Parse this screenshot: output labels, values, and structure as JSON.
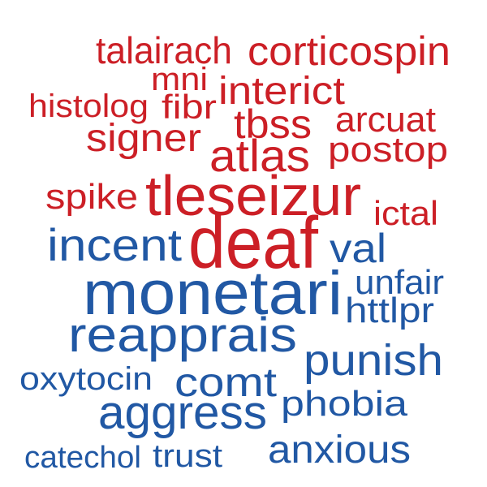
{
  "colors": {
    "red": "#cc1f26",
    "blue": "#2158a4",
    "background": "#ffffff"
  },
  "words": [
    {
      "text": "talairach",
      "color": "red"
    },
    {
      "text": "corticospin",
      "color": "red"
    },
    {
      "text": "mni",
      "color": "red"
    },
    {
      "text": "interict",
      "color": "red"
    },
    {
      "text": "histolog",
      "color": "red"
    },
    {
      "text": "fibr",
      "color": "red"
    },
    {
      "text": "tbss",
      "color": "red"
    },
    {
      "text": "arcuat",
      "color": "red"
    },
    {
      "text": "signer",
      "color": "red"
    },
    {
      "text": "atlas",
      "color": "red"
    },
    {
      "text": "postop",
      "color": "red"
    },
    {
      "text": "spike",
      "color": "red"
    },
    {
      "text": "tleseizur",
      "color": "red"
    },
    {
      "text": "ictal",
      "color": "red"
    },
    {
      "text": "incent",
      "color": "blue"
    },
    {
      "text": "deaf",
      "color": "red"
    },
    {
      "text": "val",
      "color": "blue"
    },
    {
      "text": "monetari",
      "color": "blue"
    },
    {
      "text": "unfair",
      "color": "blue"
    },
    {
      "text": "httlpr",
      "color": "blue"
    },
    {
      "text": "reapprais",
      "color": "blue"
    },
    {
      "text": "punish",
      "color": "blue"
    },
    {
      "text": "oxytocin",
      "color": "blue"
    },
    {
      "text": "comt",
      "color": "blue"
    },
    {
      "text": "aggress",
      "color": "blue"
    },
    {
      "text": "phobia",
      "color": "blue"
    },
    {
      "text": "catechol",
      "color": "blue"
    },
    {
      "text": "trust",
      "color": "blue"
    },
    {
      "text": "anxious",
      "color": "blue"
    }
  ]
}
